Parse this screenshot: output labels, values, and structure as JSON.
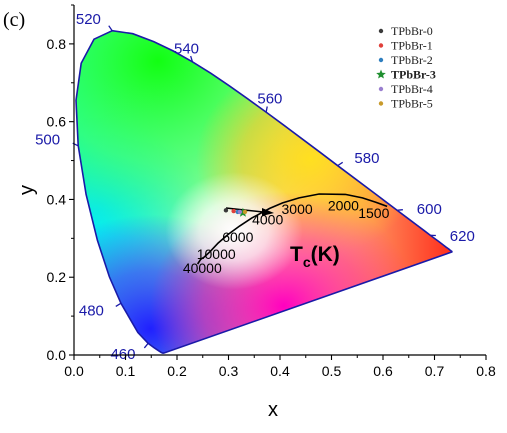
{
  "panel_label": "(c)",
  "chart_data": {
    "type": "scatter",
    "xlabel": "x",
    "ylabel": "y",
    "xlim": [
      0.0,
      0.8
    ],
    "ylim": [
      0.0,
      0.9
    ],
    "xticks": [
      "0.0",
      "0.1",
      "0.2",
      "0.3",
      "0.4",
      "0.5",
      "0.6",
      "0.7",
      "0.8"
    ],
    "yticks": [
      "0.0",
      "0.2",
      "0.4",
      "0.6",
      "0.8"
    ],
    "grid": false,
    "legend_position": "top-right",
    "spectral_locus_labels": [
      {
        "label": "460",
        "x": 0.144,
        "y": 0.03
      },
      {
        "label": "480",
        "x": 0.091,
        "y": 0.133
      },
      {
        "label": "500",
        "x": 0.008,
        "y": 0.538
      },
      {
        "label": "520",
        "x": 0.074,
        "y": 0.834
      },
      {
        "label": "540",
        "x": 0.23,
        "y": 0.754
      },
      {
        "label": "560",
        "x": 0.373,
        "y": 0.624
      },
      {
        "label": "580",
        "x": 0.512,
        "y": 0.487
      },
      {
        "label": "600",
        "x": 0.627,
        "y": 0.372
      },
      {
        "label": "620",
        "x": 0.691,
        "y": 0.308
      }
    ],
    "planckian_locus_labels": [
      {
        "label": "1500",
        "x": 0.586,
        "y": 0.393
      },
      {
        "label": "2000",
        "x": 0.527,
        "y": 0.413
      },
      {
        "label": "3000",
        "x": 0.437,
        "y": 0.404
      },
      {
        "label": "4000",
        "x": 0.38,
        "y": 0.377
      },
      {
        "label": "6000",
        "x": 0.322,
        "y": 0.332
      },
      {
        "label": "10000",
        "x": 0.28,
        "y": 0.288
      },
      {
        "label": "40000",
        "x": 0.253,
        "y": 0.252
      }
    ],
    "tc_label": {
      "main": "T",
      "sub": "c",
      "tail": "(K)"
    },
    "series": [
      {
        "name": "TPbBr-0",
        "x": 0.295,
        "y": 0.372,
        "color": "#3a3a3a",
        "marker": "circle"
      },
      {
        "name": "TPbBr-1",
        "x": 0.31,
        "y": 0.37,
        "color": "#e0403a",
        "marker": "circle"
      },
      {
        "name": "TPbBr-2",
        "x": 0.318,
        "y": 0.368,
        "color": "#2f7fbf",
        "marker": "circle"
      },
      {
        "name": "TPbBr-3",
        "x": 0.328,
        "y": 0.366,
        "color": "#1f8f2f",
        "marker": "star",
        "bold": true
      },
      {
        "name": "TPbBr-4",
        "x": 0.322,
        "y": 0.368,
        "color": "#9a7fcf",
        "marker": "circle"
      },
      {
        "name": "TPbBr-5",
        "x": 0.332,
        "y": 0.368,
        "color": "#c89a2a",
        "marker": "circle"
      }
    ]
  }
}
